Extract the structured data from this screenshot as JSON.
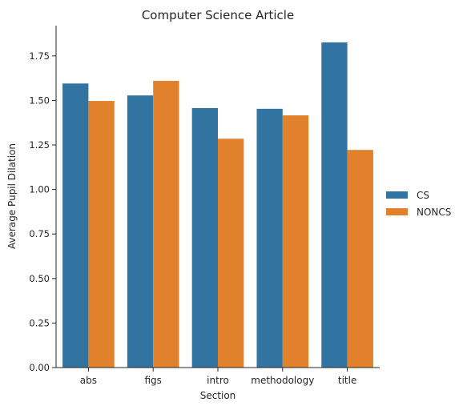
{
  "chart_data": {
    "type": "bar",
    "title": "Computer Science Article",
    "xlabel": "Section",
    "ylabel": "Average Pupil Dilation",
    "categories": [
      "abs",
      "figs",
      "intro",
      "methodology",
      "title"
    ],
    "series": [
      {
        "name": "CS",
        "color": "#3274a1",
        "values": [
          1.595,
          1.528,
          1.457,
          1.453,
          1.826
        ]
      },
      {
        "name": "NONCS",
        "color": "#e1812c",
        "values": [
          1.497,
          1.61,
          1.285,
          1.416,
          1.222
        ]
      }
    ],
    "ylim": [
      0,
      1.92
    ],
    "yticks": [
      "0.00",
      "0.25",
      "0.50",
      "0.75",
      "1.00",
      "1.25",
      "1.50",
      "1.75"
    ],
    "grid": false,
    "legend_position": "right"
  }
}
